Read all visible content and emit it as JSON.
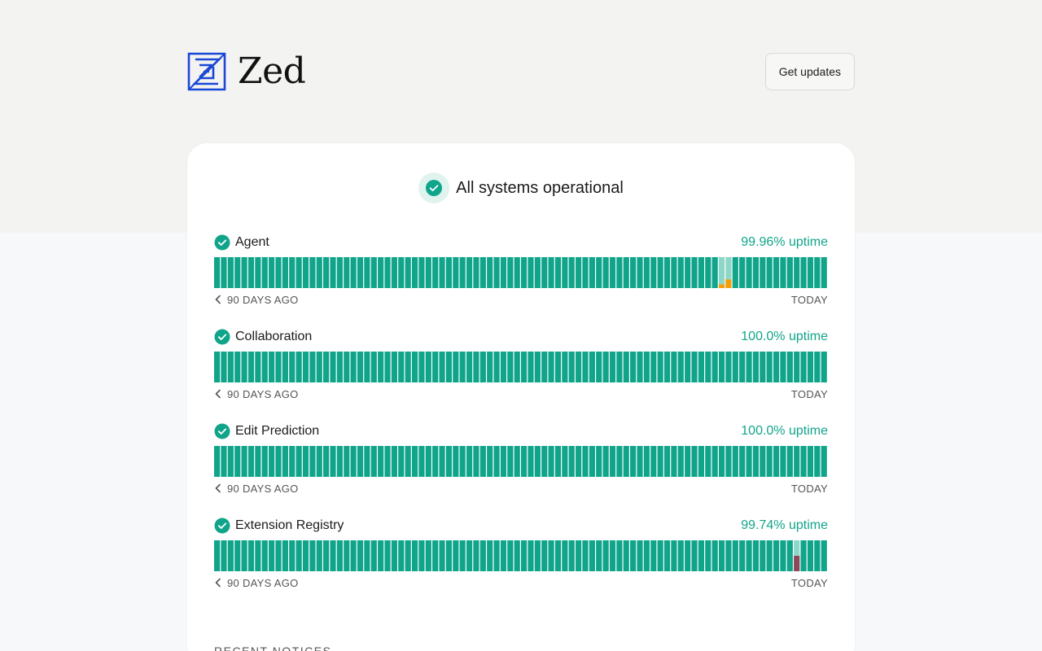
{
  "brand": {
    "name": "Zed",
    "logo_icon": "zed-logo-icon",
    "accent": "#1a47d6"
  },
  "header": {
    "updates_label": "Get updates"
  },
  "summary": {
    "text": "All systems operational",
    "icon": "check-circle-icon"
  },
  "colors": {
    "operational": "#10a58a",
    "partial": "#f59e0b",
    "major": "#8b4a5a",
    "tick_faded": "#8ed6c7"
  },
  "components": [
    {
      "name": "Agent",
      "uptime": "99.96% uptime",
      "range_start": "90 DAYS AGO",
      "range_end": "TODAY",
      "days": 90,
      "incidents": [
        {
          "day_index": 74,
          "status": "partial",
          "level": 0.12
        },
        {
          "day_index": 75,
          "status": "partial",
          "level": 0.28
        }
      ]
    },
    {
      "name": "Collaboration",
      "uptime": "100.0% uptime",
      "range_start": "90 DAYS AGO",
      "range_end": "TODAY",
      "days": 90,
      "incidents": []
    },
    {
      "name": "Edit Prediction",
      "uptime": "100.0% uptime",
      "range_start": "90 DAYS AGO",
      "range_end": "TODAY",
      "days": 90,
      "incidents": []
    },
    {
      "name": "Extension Registry",
      "uptime": "99.74% uptime",
      "range_start": "90 DAYS AGO",
      "range_end": "TODAY",
      "days": 90,
      "incidents": [
        {
          "day_index": 85,
          "status": "major",
          "level": 0.5
        }
      ]
    }
  ],
  "notices": {
    "heading": "RECENT NOTICES"
  }
}
